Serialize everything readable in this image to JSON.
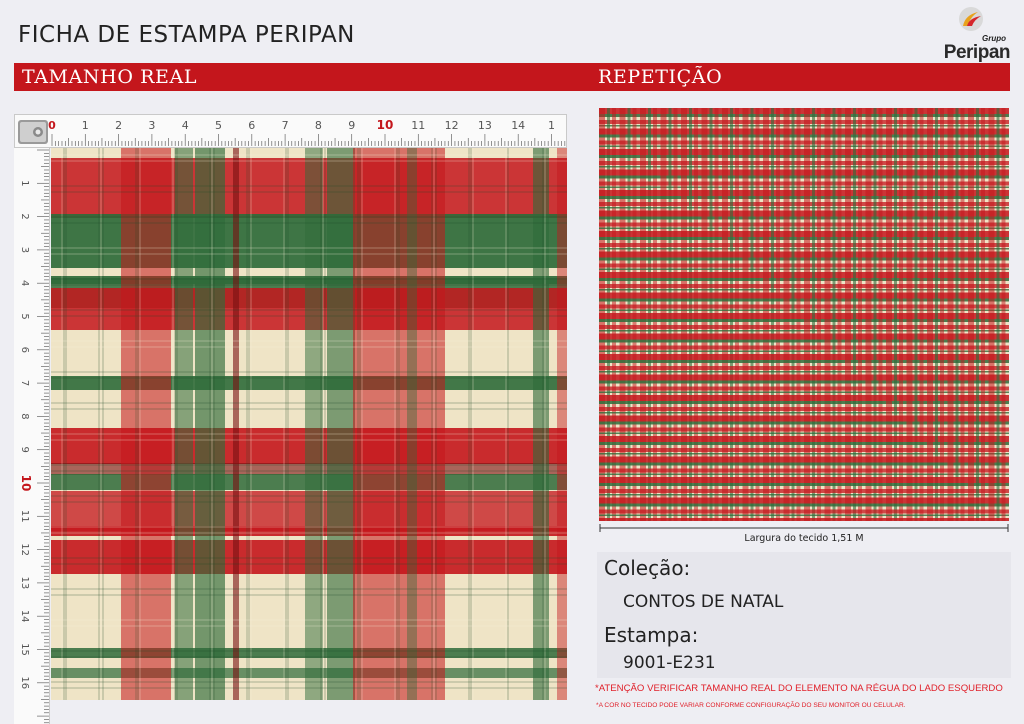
{
  "header": {
    "title": "FICHA DE ESTAMPA PERIPAN",
    "logo": {
      "grupo": "Grupo",
      "name": "Peripan",
      "icon": "peripan-logo-icon"
    }
  },
  "sections": {
    "left_label": "TAMANHO REAL",
    "right_label": "REPETIÇÃO"
  },
  "ruler": {
    "top_labels": [
      "0",
      "1",
      "2",
      "3",
      "4",
      "5",
      "6",
      "7",
      "8",
      "9",
      "10",
      "11",
      "12",
      "13",
      "14",
      "1"
    ],
    "left_labels": [
      "1",
      "2",
      "3",
      "4",
      "5",
      "6",
      "7",
      "8",
      "9",
      "10",
      "11",
      "12",
      "13",
      "14",
      "15",
      "16"
    ],
    "highlight": "10"
  },
  "fabric": {
    "width_label": "Largura do tecido 1,51 M",
    "colors": {
      "red": "#c4161c",
      "green": "#2f6b3a",
      "cream": "#efe4c6",
      "dark_red": "#7a1012"
    }
  },
  "info": {
    "collection_heading": "Coleção:",
    "collection_value": "CONTOS DE NATAL",
    "print_heading": "Estampa:",
    "print_value": "9001-E231"
  },
  "warnings": {
    "line1": "*ATENÇÃO VERIFICAR TAMANHO REAL DO ELEMENTO NA RÉGUA DO LADO ESQUERDO",
    "line2": "*A COR NO TECIDO PODE VARIAR CONFORME CONFIGURAÇÃO DO SEU MONITOR OU CELULAR."
  },
  "accent": "#c4161c"
}
